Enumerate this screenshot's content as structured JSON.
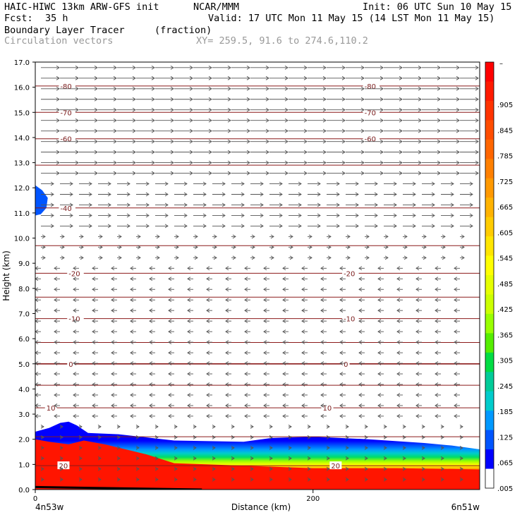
{
  "header": {
    "model": "HAIC-HIWC 13km ARW-GFS init",
    "org": "NCAR/MMM",
    "init": "Init: 06 UTC Sun 10 May 15",
    "fcst_label": "Fcst:",
    "fcst_value": "35 h",
    "valid": "Valid: 17 UTC Mon 11 May 15 (14 LST Mon 11 May 15)",
    "field": "Boundary Layer Tracer",
    "units": "(fraction)",
    "vectors": "Circulation vectors",
    "xy": "XY= 259.5, 91.6 to 274.6,110.2"
  },
  "chart_data": {
    "type": "heatmap",
    "xlabel": "Distance (km)",
    "ylabel": "Height (km)",
    "x_range": [
      0,
      320
    ],
    "ylim": [
      0,
      17
    ],
    "xticks": [
      {
        "value": 0,
        "label": "0"
      },
      {
        "value": 200,
        "label": "200"
      }
    ],
    "x_endpoints": {
      "left": "4n53w",
      "right": "6n51w"
    },
    "yticks": [
      "0.0",
      "1.0",
      "2.0",
      "3.0",
      "4.0",
      "5.0",
      "6.0",
      "7.0",
      "8.0",
      "9.0",
      "10.0",
      "11.0",
      "12.0",
      "13.0",
      "14.0",
      "15.0",
      "16.0",
      "17.0"
    ],
    "colorbar": {
      "labels": [
        ".905",
        ".845",
        ".785",
        ".725",
        ".665",
        ".605",
        ".545",
        ".485",
        ".425",
        ".365",
        ".305",
        ".245",
        ".185",
        ".125",
        ".065",
        ".005"
      ],
      "top_label": "–",
      "colors": [
        "#ff0000",
        "#ff1a00",
        "#ff3300",
        "#ff4d00",
        "#ff6600",
        "#ff8000",
        "#ff9900",
        "#ffb300",
        "#ffcc00",
        "#ffe600",
        "#ffff00",
        "#e6ff00",
        "#ccff00",
        "#99ff00",
        "#55ee00",
        "#00dd44",
        "#00cc99",
        "#00cccc",
        "#0099ff",
        "#0055ff",
        "#0000ff",
        "#ffffff"
      ]
    },
    "temperature_contours": [
      {
        "value": -80,
        "height_km": 16.05,
        "labels": [
          {
            "x": 18,
            "text": "-80"
          },
          {
            "x": 237,
            "text": "-80"
          }
        ]
      },
      {
        "value": -70,
        "height_km": 15.0,
        "labels": [
          {
            "x": 18,
            "text": "-70"
          },
          {
            "x": 237,
            "text": "-70"
          }
        ]
      },
      {
        "value": -60,
        "height_km": 13.95,
        "labels": [
          {
            "x": 18,
            "text": "-60"
          },
          {
            "x": 237,
            "text": "-60"
          }
        ]
      },
      {
        "value": -50,
        "height_km": 12.9,
        "labels": []
      },
      {
        "value": -40,
        "height_km": 11.2,
        "labels": [
          {
            "x": 18,
            "text": "-40"
          }
        ]
      },
      {
        "value": -30,
        "height_km": 9.7,
        "labels": []
      },
      {
        "value": -20,
        "height_km": 8.6,
        "labels": [
          {
            "x": 24,
            "text": "-20"
          },
          {
            "x": 222,
            "text": "-20"
          }
        ]
      },
      {
        "value": -15,
        "height_km": 7.65,
        "labels": []
      },
      {
        "value": -10,
        "height_km": 6.8,
        "labels": [
          {
            "x": 24,
            "text": "-10"
          },
          {
            "x": 222,
            "text": "-10"
          }
        ]
      },
      {
        "value": -5,
        "height_km": 5.85,
        "labels": []
      },
      {
        "value": 0,
        "height_km": 5.0,
        "labels": [
          {
            "x": 24,
            "text": "0"
          },
          {
            "x": 222,
            "text": "0"
          }
        ]
      },
      {
        "value": 5,
        "height_km": 4.15,
        "labels": []
      },
      {
        "value": 10,
        "height_km": 3.25,
        "labels": [
          {
            "x": 8,
            "text": "10"
          },
          {
            "x": 207,
            "text": "10"
          }
        ]
      },
      {
        "value": 15,
        "height_km": 2.1,
        "labels": []
      },
      {
        "value": 20,
        "height_km": 0.95,
        "labels": [
          {
            "x": 17,
            "text": "20"
          },
          {
            "x": 213,
            "text": "20"
          }
        ]
      }
    ],
    "tracer_top_km": [
      [
        0,
        2.3
      ],
      [
        10,
        2.45
      ],
      [
        18,
        2.65
      ],
      [
        24,
        2.7
      ],
      [
        30,
        2.55
      ],
      [
        38,
        2.25
      ],
      [
        60,
        2.2
      ],
      [
        100,
        1.95
      ],
      [
        150,
        1.9
      ],
      [
        170,
        2.05
      ],
      [
        200,
        2.1
      ],
      [
        240,
        2.0
      ],
      [
        280,
        1.85
      ],
      [
        300,
        1.75
      ],
      [
        320,
        1.6
      ]
    ],
    "tracer_core_km": [
      [
        0,
        2.0
      ],
      [
        10,
        1.9
      ],
      [
        24,
        1.8
      ],
      [
        35,
        1.95
      ],
      [
        50,
        1.8
      ],
      [
        80,
        1.4
      ],
      [
        100,
        1.05
      ],
      [
        150,
        0.95
      ],
      [
        200,
        0.85
      ],
      [
        260,
        0.85
      ],
      [
        320,
        0.8
      ]
    ],
    "upper_blob_km": [
      [
        0,
        12.1
      ],
      [
        5,
        11.9
      ],
      [
        9,
        11.6
      ],
      [
        8,
        11.2
      ],
      [
        4,
        10.95
      ],
      [
        0,
        10.9
      ]
    ]
  }
}
